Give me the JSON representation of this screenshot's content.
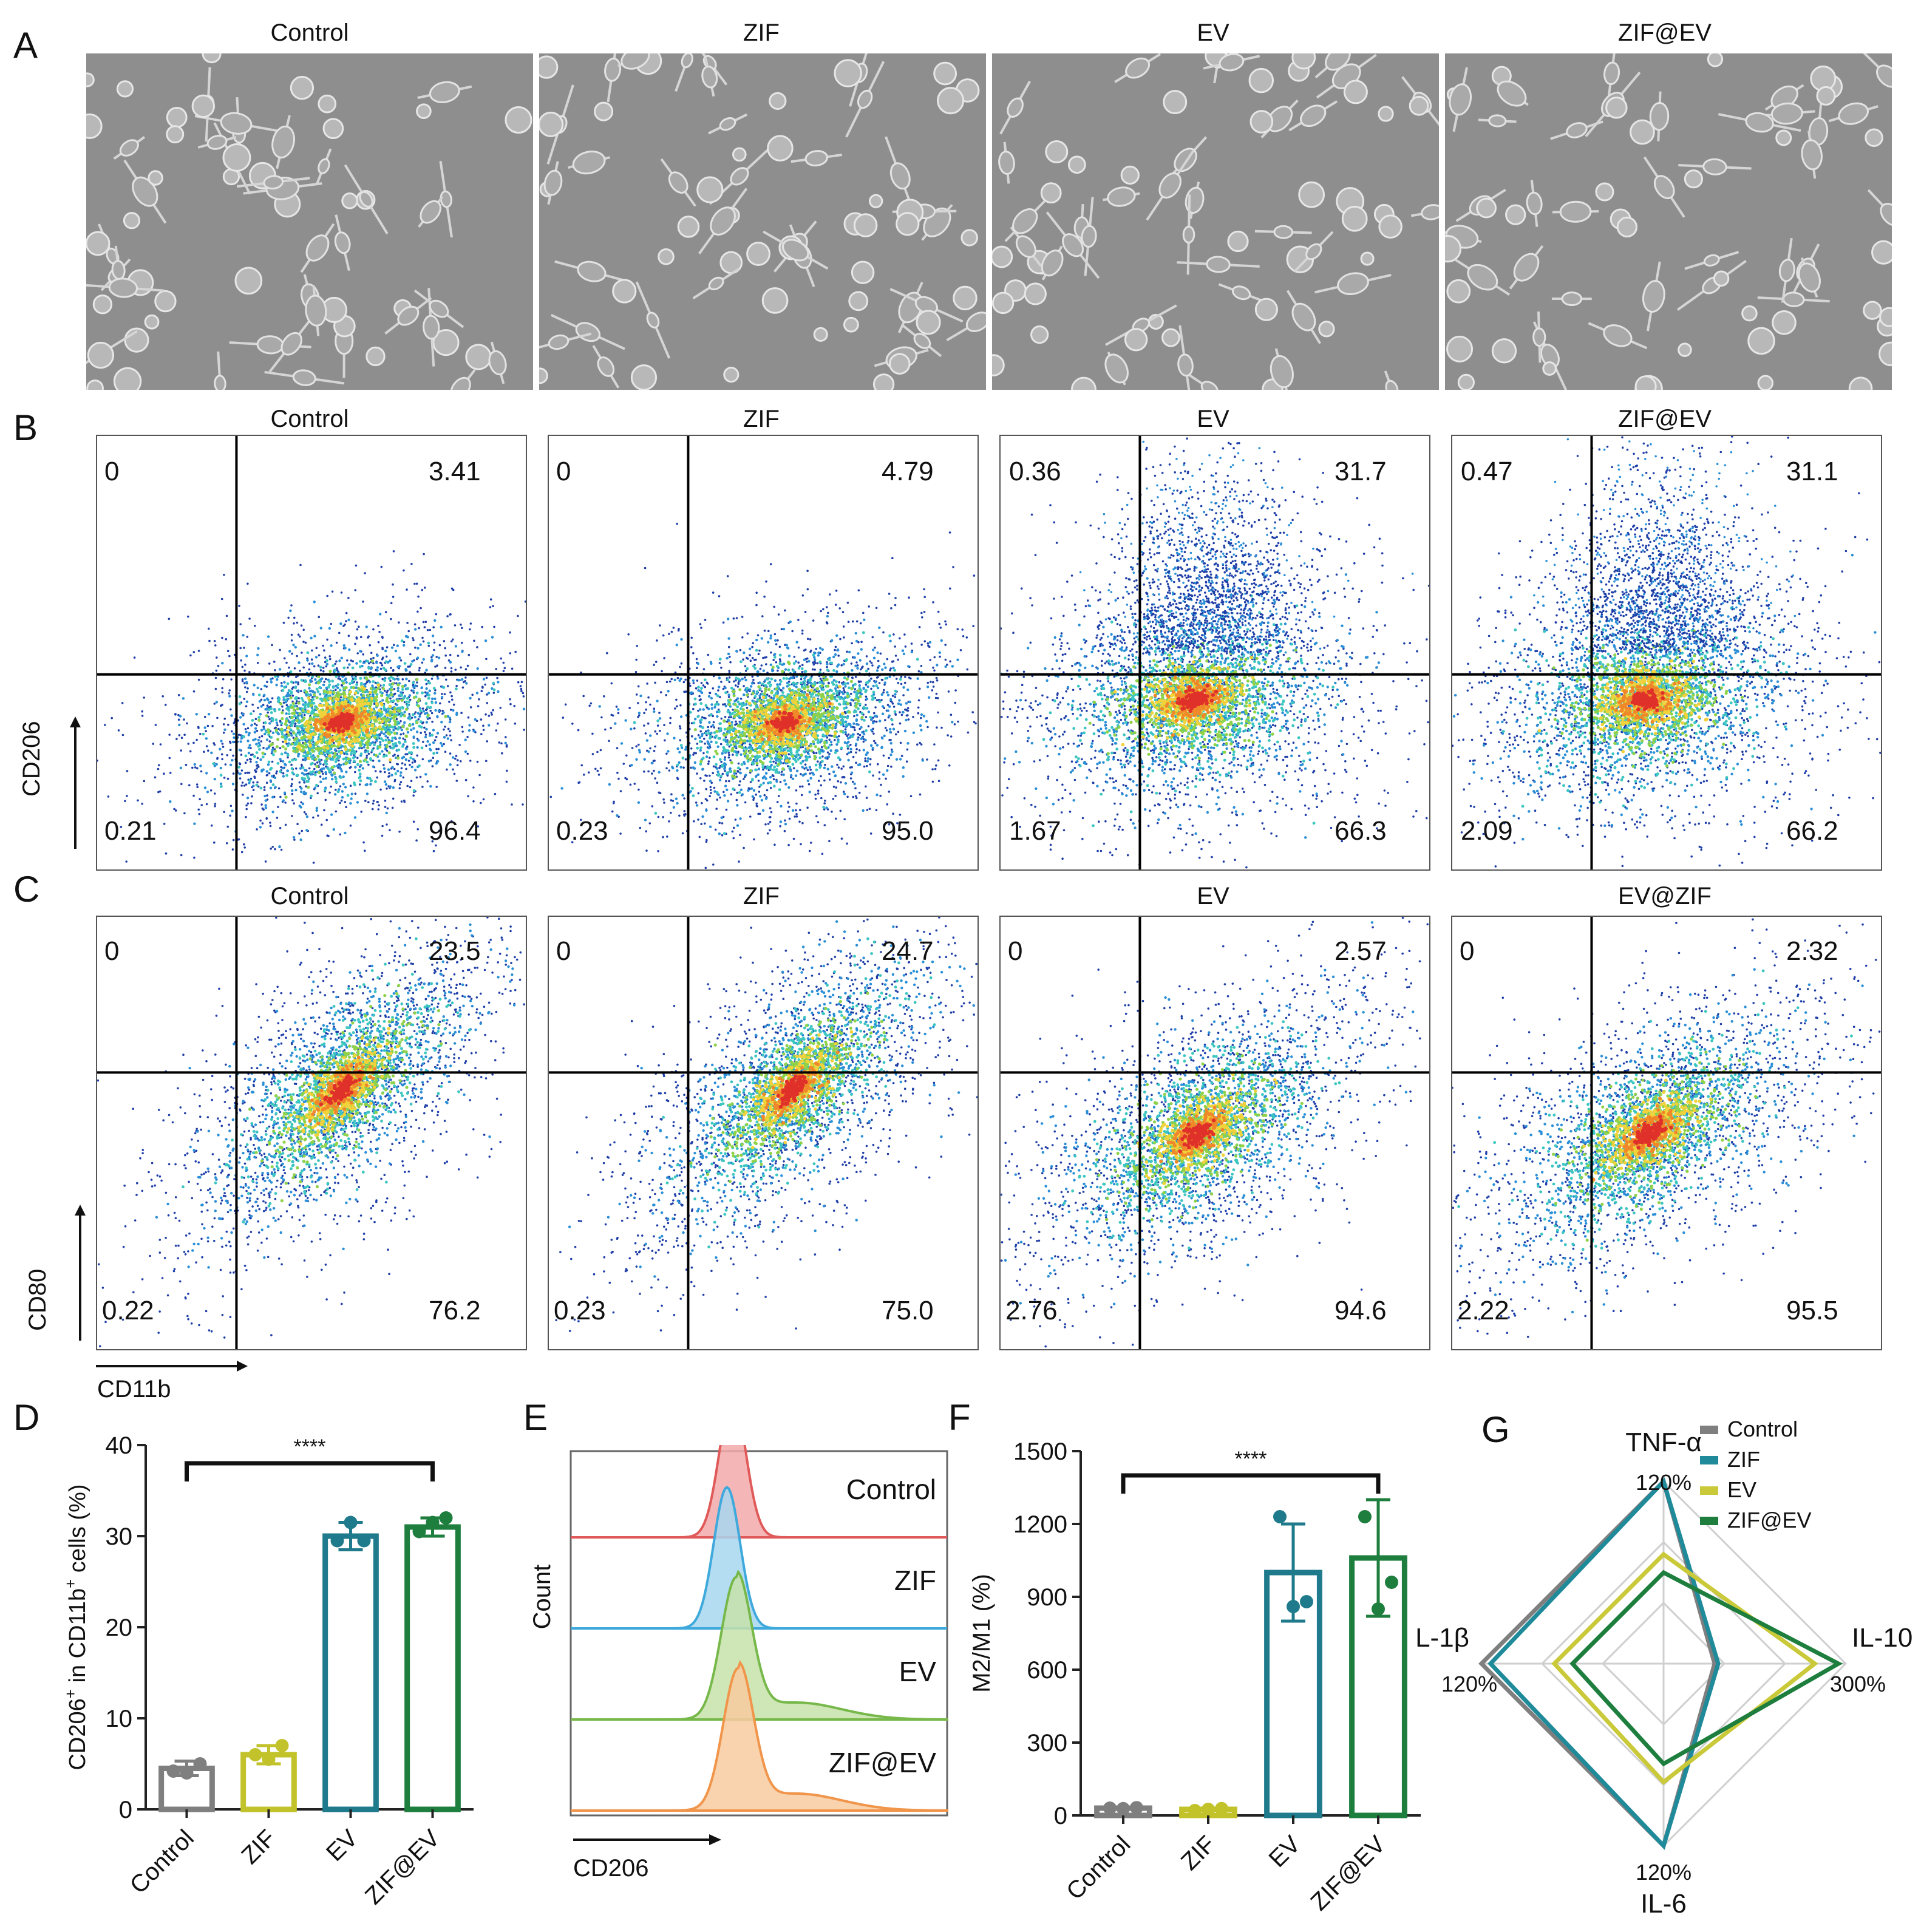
{
  "panel_letters": [
    "A",
    "B",
    "C",
    "D",
    "E",
    "F",
    "G"
  ],
  "panelA": {
    "titles": [
      "Control",
      "ZIF",
      "EV",
      "ZIF@EV"
    ]
  },
  "panelB": {
    "titles": [
      "Control",
      "ZIF",
      "EV",
      "ZIF@EV"
    ],
    "y_axis_label": "CD206",
    "quadrants": [
      {
        "ul": "0",
        "ur": "3.41",
        "ll": "0.21",
        "lr": "96.4"
      },
      {
        "ul": "0",
        "ur": "4.79",
        "ll": "0.23",
        "lr": "95.0"
      },
      {
        "ul": "0.36",
        "ur": "31.7",
        "ll": "1.67",
        "lr": "66.3"
      },
      {
        "ul": "0.47",
        "ur": "31.1",
        "ll": "2.09",
        "lr": "66.2"
      }
    ]
  },
  "panelC": {
    "titles": [
      "Control",
      "ZIF",
      "EV",
      "EV@ZIF"
    ],
    "y_axis_label": "CD80",
    "x_axis_label": "CD11b",
    "quadrants": [
      {
        "ul": "0",
        "ur": "23.5",
        "ll": "0.22",
        "lr": "76.2"
      },
      {
        "ul": "0",
        "ur": "24.7",
        "ll": "0.23",
        "lr": "75.0"
      },
      {
        "ul": "0",
        "ur": "2.57",
        "ll": "2.76",
        "lr": "94.6"
      },
      {
        "ul": "0",
        "ur": "2.32",
        "ll": "2.22",
        "lr": "95.5"
      }
    ]
  },
  "chart_data": [
    {
      "type": "bar",
      "panel": "D",
      "ylabel_main": "CD206",
      "ylabel_sup": "+",
      "ylabel_mid": " in CD11b",
      "ylabel_sup2": "+",
      "ylabel_end": " cells (%)",
      "categories": [
        "Control",
        "ZIF",
        "EV",
        "ZIF@EV"
      ],
      "values": [
        4.5,
        6.0,
        30.0,
        31.0
      ],
      "errors": [
        0.8,
        1.0,
        1.5,
        1.0
      ],
      "points": [
        [
          4.2,
          4.0,
          5.0
        ],
        [
          6.0,
          5.5,
          7.0
        ],
        [
          29.5,
          31.5,
          29.5
        ],
        [
          30.5,
          31.5,
          32.0
        ]
      ],
      "colors": [
        "#7f7f7f",
        "#c2c22b",
        "#1f7a8c",
        "#1e7e3e"
      ],
      "ylim": [
        0,
        40
      ],
      "yticks": [
        "0",
        "10",
        "20",
        "30",
        "40"
      ],
      "significance": "****"
    },
    {
      "type": "area",
      "panel": "E",
      "xlabel": "CD206",
      "ylabel": "Count",
      "series": [
        {
          "name": "Control",
          "color": "#e05a5a",
          "fill": "#f2a9a9",
          "peak_x": 0.43,
          "width": 0.035
        },
        {
          "name": "ZIF",
          "color": "#3fa9dc",
          "fill": "#a8d7f0",
          "peak_x": 0.415,
          "width": 0.035
        },
        {
          "name": "EV",
          "color": "#77b84a",
          "fill": "#c7e2aa",
          "peak_x": 0.44,
          "width": 0.04
        },
        {
          "name": "ZIF@EV",
          "color": "#f0954a",
          "fill": "#f8caa0",
          "peak_x": 0.445,
          "width": 0.04
        }
      ]
    },
    {
      "type": "bar",
      "panel": "F",
      "ylabel": "M2/M1 (%)",
      "categories": [
        "Control",
        "ZIF",
        "EV",
        "ZIF@EV"
      ],
      "values": [
        30,
        25,
        1000,
        1060
      ],
      "errors": [
        5,
        5,
        200,
        240
      ],
      "points": [
        [
          30,
          28,
          32
        ],
        [
          20,
          25,
          28
        ],
        [
          1230,
          860,
          880
        ],
        [
          1230,
          850,
          960
        ]
      ],
      "colors": [
        "#7f7f7f",
        "#c2c22b",
        "#1f7a8c",
        "#1e7e3e"
      ],
      "ylim": [
        0,
        1500
      ],
      "yticks": [
        "0",
        "300",
        "600",
        "900",
        "1200",
        "1500"
      ],
      "significance": "****"
    },
    {
      "type": "radar",
      "panel": "G",
      "axes": [
        "TNF-α",
        "IL-10",
        "IL-6",
        "IL-1β"
      ],
      "axis_max_labels": [
        "120%",
        "300%",
        "120%",
        "120%"
      ],
      "series": [
        {
          "name": "Control",
          "color": "#7f7f7f",
          "values": [
            1.0,
            0.28,
            1.0,
            1.0
          ]
        },
        {
          "name": "ZIF",
          "color": "#1f8a99",
          "values": [
            1.0,
            0.3,
            1.0,
            0.95
          ]
        },
        {
          "name": "EV",
          "color": "#c9c93a",
          "values": [
            0.6,
            0.83,
            0.65,
            0.6
          ]
        },
        {
          "name": "ZIF@EV",
          "color": "#1e7e3e",
          "values": [
            0.5,
            0.96,
            0.55,
            0.5
          ]
        }
      ]
    }
  ]
}
